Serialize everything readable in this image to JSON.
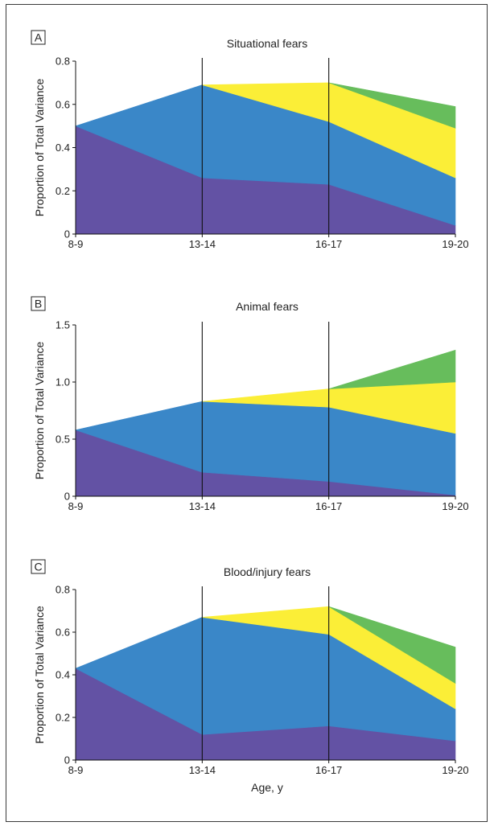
{
  "figure": {
    "xlabel": "Age, y"
  },
  "chart_data": [
    {
      "type": "area",
      "panel_label": "A",
      "title": "Situational fears",
      "ylabel": "Proportion of Total Variance",
      "categories": [
        "8-9",
        "13-14",
        "16-17",
        "19-20"
      ],
      "ylim": [
        0,
        0.8
      ],
      "yticks": [
        "0",
        "0.2",
        "0.4",
        "0.6",
        "0.8"
      ],
      "series": [
        {
          "values": [
            0.5,
            0.26,
            0.23,
            0.04
          ],
          "color": "#6352a4"
        },
        {
          "values": [
            0.0,
            0.43,
            0.29,
            0.22
          ],
          "color": "#3a87c8"
        },
        {
          "values": [
            null,
            0.0,
            0.18,
            0.23
          ],
          "color": "#fbee37"
        },
        {
          "values": [
            null,
            null,
            0.0,
            0.1
          ],
          "color": "#67bd5c"
        }
      ],
      "vlines": [
        "13-14",
        "16-17"
      ]
    },
    {
      "type": "area",
      "panel_label": "B",
      "title": "Animal fears",
      "ylabel": "Proportion of Total Variance",
      "categories": [
        "8-9",
        "13-14",
        "16-17",
        "19-20"
      ],
      "ylim": [
        0,
        1.5
      ],
      "yticks": [
        "0",
        "0.5",
        "1.0",
        "1.5"
      ],
      "series": [
        {
          "values": [
            0.58,
            0.21,
            0.13,
            0.01
          ],
          "color": "#6352a4"
        },
        {
          "values": [
            0.0,
            0.62,
            0.65,
            0.54
          ],
          "color": "#3a87c8"
        },
        {
          "values": [
            null,
            0.0,
            0.16,
            0.45
          ],
          "color": "#fbee37"
        },
        {
          "values": [
            null,
            null,
            0.0,
            0.28
          ],
          "color": "#67bd5c"
        }
      ],
      "vlines": [
        "13-14",
        "16-17"
      ]
    },
    {
      "type": "area",
      "panel_label": "C",
      "title": "Blood/injury fears",
      "ylabel": "Proportion of Total Variance",
      "categories": [
        "8-9",
        "13-14",
        "16-17",
        "19-20"
      ],
      "ylim": [
        0,
        0.8
      ],
      "yticks": [
        "0",
        "0.2",
        "0.4",
        "0.6",
        "0.8"
      ],
      "series": [
        {
          "values": [
            0.43,
            0.12,
            0.16,
            0.09
          ],
          "color": "#6352a4"
        },
        {
          "values": [
            0.0,
            0.55,
            0.43,
            0.15
          ],
          "color": "#3a87c8"
        },
        {
          "values": [
            null,
            0.0,
            0.13,
            0.12
          ],
          "color": "#fbee37"
        },
        {
          "values": [
            null,
            null,
            0.0,
            0.17
          ],
          "color": "#67bd5c"
        }
      ],
      "vlines": [
        "13-14",
        "16-17"
      ]
    }
  ]
}
